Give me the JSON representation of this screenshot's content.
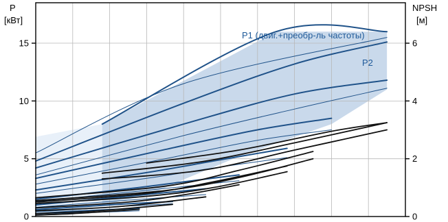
{
  "chart_data": {
    "type": "line",
    "title": "",
    "colors": {
      "band_outer": "#e8f0f9",
      "band_inner": "#c9d9eb",
      "grid": "#b8b8b8",
      "curve": "#1f5289",
      "npsh_curve": "#111111",
      "annotation": "#1f5a99"
    },
    "left_axis": {
      "label_line1": "P",
      "label_line2": "[кВт]",
      "ylim": [
        0,
        18.5
      ],
      "ticks": [
        0,
        5,
        10,
        15
      ],
      "tick_labels": [
        "0",
        "5",
        "10",
        "15"
      ]
    },
    "right_axis": {
      "label_line1": "NPSH",
      "label_line2": "[м]",
      "ylim": [
        0,
        7.4
      ],
      "ticks": [
        0,
        2,
        4,
        6
      ],
      "tick_labels": [
        "0",
        "2",
        "4",
        "6"
      ]
    },
    "x_axis": {
      "xlim": [
        0,
        100
      ],
      "grid": [
        0,
        10,
        20,
        30,
        40,
        50,
        60,
        70,
        80,
        90,
        100
      ]
    },
    "annotations": {
      "p1": "P1 (двиг.+преобр-ль частоты)",
      "p2": "P2"
    },
    "band_outer": [
      [
        0,
        0
      ],
      [
        0,
        6.9
      ],
      [
        18,
        8.0
      ],
      [
        65,
        16.0
      ],
      [
        95,
        16.0
      ],
      [
        95,
        11.0
      ],
      [
        80,
        8.0
      ],
      [
        55,
        5.2
      ],
      [
        40,
        3.2
      ],
      [
        30,
        1.8
      ],
      [
        18,
        1.0
      ],
      [
        5,
        0.2
      ]
    ],
    "band_inner": [
      [
        18,
        1.0
      ],
      [
        18,
        8.0
      ],
      [
        65,
        16.0
      ],
      [
        95,
        16.0
      ],
      [
        95,
        11.0
      ],
      [
        80,
        8.0
      ],
      [
        55,
        5.2
      ],
      [
        40,
        3.2
      ],
      [
        30,
        1.8
      ]
    ],
    "power_series": [
      {
        "x": [
          18,
          65,
          95
        ],
        "y": [
          8.0,
          16.0,
          16.0
        ],
        "w": 2.0
      },
      {
        "x": [
          0,
          40,
          95
        ],
        "y": [
          5.5,
          11.5,
          15.5
        ],
        "w": 1.0
      },
      {
        "x": [
          0,
          40,
          70,
          95
        ],
        "y": [
          4.8,
          9.8,
          13.2,
          15.1
        ],
        "w": 2.0
      },
      {
        "x": [
          0,
          40,
          70,
          95
        ],
        "y": [
          4.2,
          8.0,
          10.6,
          11.8
        ],
        "w": 2.0
      },
      {
        "x": [
          0,
          40,
          70,
          95
        ],
        "y": [
          3.6,
          7.0,
          9.3,
          11.1
        ],
        "w": 1.0
      },
      {
        "x": [
          0,
          35,
          60,
          80
        ],
        "y": [
          3.3,
          5.8,
          7.5,
          8.5
        ],
        "w": 2.0
      },
      {
        "x": [
          0,
          35,
          60,
          80
        ],
        "y": [
          2.8,
          5.0,
          6.6,
          7.5
        ],
        "w": 1.0
      },
      {
        "x": [
          0,
          30,
          48,
          68
        ],
        "y": [
          2.3,
          3.8,
          4.8,
          5.9
        ],
        "w": 2.0
      },
      {
        "x": [
          0,
          30,
          48,
          68
        ],
        "y": [
          2.0,
          3.3,
          4.2,
          5.1
        ],
        "w": 1.0
      },
      {
        "x": [
          0,
          25,
          40,
          55
        ],
        "y": [
          1.5,
          2.4,
          3.0,
          3.6
        ],
        "w": 2.0
      },
      {
        "x": [
          0,
          25,
          40,
          55
        ],
        "y": [
          1.3,
          2.1,
          2.6,
          3.1
        ],
        "w": 1.0
      },
      {
        "x": [
          0,
          20,
          33,
          46
        ],
        "y": [
          1.0,
          1.6,
          2.0,
          2.4
        ],
        "w": 2.0
      },
      {
        "x": [
          0,
          20,
          33,
          46
        ],
        "y": [
          0.8,
          1.3,
          1.6,
          1.9
        ],
        "w": 1.0
      },
      {
        "x": [
          0,
          15,
          25,
          37
        ],
        "y": [
          0.6,
          0.9,
          1.1,
          1.3
        ],
        "w": 2.0
      },
      {
        "x": [
          0,
          15,
          25,
          37
        ],
        "y": [
          0.4,
          0.7,
          0.9,
          1.1
        ],
        "w": 1.0
      },
      {
        "x": [
          0,
          10,
          20,
          28
        ],
        "y": [
          0.25,
          0.45,
          0.6,
          0.7
        ],
        "w": 2.0
      },
      {
        "x": [
          0,
          10,
          20,
          28
        ],
        "y": [
          0.15,
          0.3,
          0.4,
          0.5
        ],
        "w": 1.0
      }
    ],
    "npsh_series": [
      {
        "x": [
          0,
          10,
          20,
          28
        ],
        "y": [
          0.05,
          0.1,
          0.18,
          0.25
        ],
        "w": 1.8
      },
      {
        "x": [
          0,
          15,
          25,
          37
        ],
        "y": [
          0.1,
          0.18,
          0.28,
          0.42
        ],
        "w": 1.8
      },
      {
        "x": [
          0,
          20,
          33,
          46
        ],
        "y": [
          0.2,
          0.32,
          0.48,
          0.68
        ],
        "w": 1.8
      },
      {
        "x": [
          0,
          25,
          40,
          55
        ],
        "y": [
          0.3,
          0.5,
          0.75,
          1.1
        ],
        "w": 1.8
      },
      {
        "x": [
          0,
          30,
          48,
          68
        ],
        "y": [
          0.5,
          0.8,
          1.2,
          1.75
        ],
        "w": 1.8
      },
      {
        "x": [
          0,
          30,
          48,
          68
        ],
        "y": [
          0.45,
          0.7,
          1.0,
          1.55
        ],
        "w": 1.8
      },
      {
        "x": [
          0,
          35,
          55,
          75
        ],
        "y": [
          0.65,
          1.05,
          1.6,
          2.25
        ],
        "w": 1.8
      },
      {
        "x": [
          0,
          35,
          55,
          75
        ],
        "y": [
          0.55,
          0.9,
          1.35,
          2.0
        ],
        "w": 1.8
      },
      {
        "x": [
          18,
          45,
          70,
          95
        ],
        "y": [
          1.5,
          1.9,
          2.55,
          3.25
        ],
        "w": 1.8
      },
      {
        "x": [
          18,
          45,
          70,
          95
        ],
        "y": [
          1.3,
          1.6,
          2.3,
          3.0
        ],
        "w": 1.8
      },
      {
        "x": [
          30,
          55,
          80,
          95
        ],
        "y": [
          1.85,
          2.3,
          2.95,
          3.25
        ],
        "w": 1.8
      }
    ]
  }
}
